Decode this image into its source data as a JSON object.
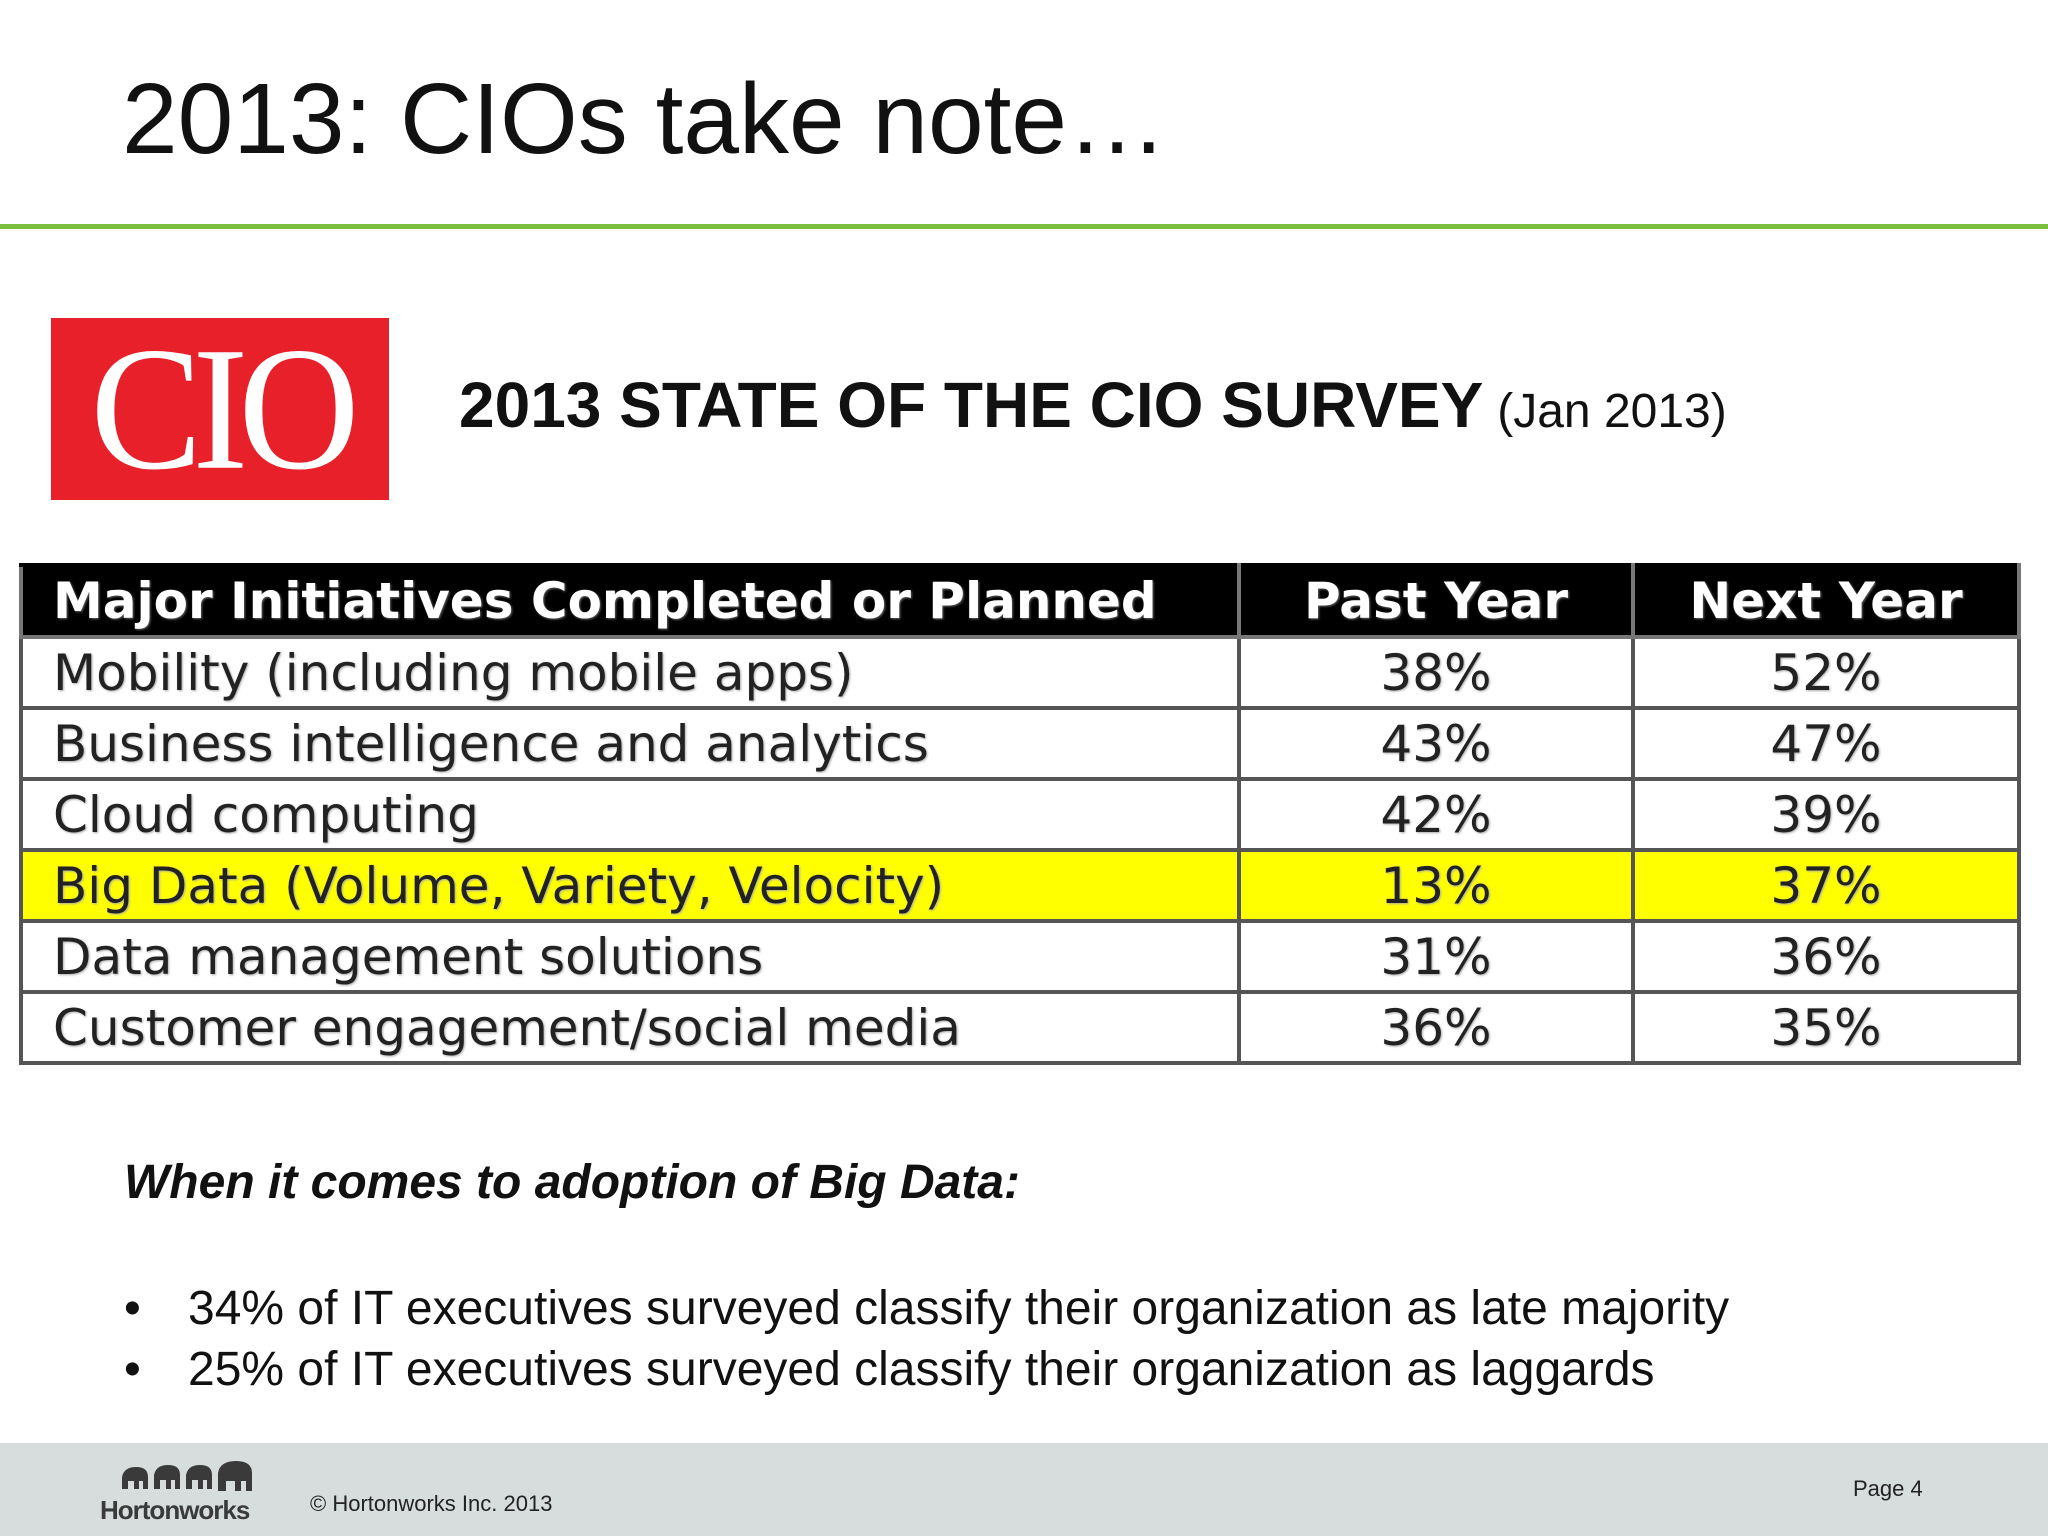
{
  "slide": {
    "title": "2013: CIOs take note…",
    "logo_text": "CIO",
    "survey_title": "2013 STATE OF THE CIO SURVEY",
    "survey_date": "(Jan 2013)"
  },
  "table": {
    "headers": [
      "Major Initiatives Completed or Planned",
      "Past Year",
      "Next Year"
    ],
    "rows": [
      [
        "Mobility (including mobile apps)",
        "38%",
        "52%"
      ],
      [
        "Business intelligence and analytics",
        "43%",
        "47%"
      ],
      [
        "Cloud computing",
        "42%",
        "39%"
      ],
      [
        "Big Data (Volume, Variety, Velocity)",
        "13%",
        "37%"
      ],
      [
        "Data management solutions",
        "31%",
        "36%"
      ],
      [
        "Customer engagement/social media",
        "36%",
        "35%"
      ]
    ],
    "highlight_color": "#ffff00"
  },
  "adoption": {
    "heading": "When it comes to adoption of Big Data:",
    "bullet_char": "•",
    "bullets": [
      "34% of IT executives surveyed classify their organization as late majority",
      "25% of IT executives surveyed classify their organization as laggards"
    ]
  },
  "footer": {
    "brand": "Hortonworks",
    "copyright": "© Hortonworks Inc. 2013",
    "page": "Page 4"
  },
  "colors": {
    "accent_line": "#7cbf3f",
    "logo_red": "#e8202a",
    "footer_bg": "#d7dcdc"
  }
}
